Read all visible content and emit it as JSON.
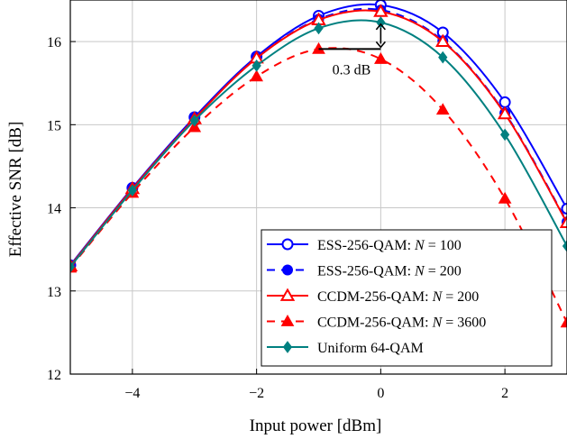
{
  "chart_data": {
    "type": "line",
    "xlabel": "Input power [dBm]",
    "ylabel": "Effective SNR [dB]",
    "xlim": [
      -5,
      3
    ],
    "ylim": [
      12,
      16.5
    ],
    "xticks": [
      -4,
      -2,
      0,
      2
    ],
    "xtick_labels": [
      "−4",
      "−2",
      "0",
      "2"
    ],
    "yticks": [
      12,
      13,
      14,
      15,
      16
    ],
    "ytick_labels": [
      "12",
      "13",
      "14",
      "15",
      "16"
    ],
    "grid": true,
    "legend_position": "bottom-right",
    "x": [
      -5,
      -4,
      -3,
      -2,
      -1,
      0,
      1,
      2,
      3
    ],
    "series": [
      {
        "name": "ESS-256-QAM: N = 100",
        "legend_prefix": "ESS-256-QAM: ",
        "legend_var": "N",
        "legend_value": " = 100",
        "color": "#0000ff",
        "dash": "solid",
        "marker": "circle-open",
        "values": [
          13.31,
          14.24,
          15.09,
          15.82,
          16.31,
          16.44,
          16.11,
          15.27,
          13.99
        ]
      },
      {
        "name": "ESS-256-QAM: N = 200",
        "legend_prefix": "ESS-256-QAM: ",
        "legend_var": "N",
        "legend_value": " = 200",
        "color": "#0000ff",
        "dash": "dashed",
        "marker": "circle-filled",
        "values": [
          13.3,
          14.23,
          15.08,
          15.8,
          16.27,
          16.38,
          16.01,
          15.14,
          13.83
        ]
      },
      {
        "name": "CCDM-256-QAM: N = 200",
        "legend_prefix": "CCDM-256-QAM: ",
        "legend_var": "N",
        "legend_value": " = 200",
        "color": "#ff0000",
        "dash": "solid",
        "marker": "triangle-open",
        "values": [
          13.3,
          14.23,
          15.07,
          15.8,
          16.26,
          16.36,
          16.0,
          15.13,
          13.82
        ]
      },
      {
        "name": "CCDM-256-QAM: N = 3600",
        "legend_prefix": "CCDM-256-QAM: ",
        "legend_var": "N",
        "legend_value": " = 3600",
        "color": "#ff0000",
        "dash": "dashed",
        "marker": "triangle-filled",
        "values": [
          13.28,
          14.18,
          14.97,
          15.58,
          15.91,
          15.79,
          15.18,
          14.11,
          12.62
        ]
      },
      {
        "name": "Uniform 64-QAM",
        "legend_prefix": "Uniform 64-QAM",
        "legend_var": "",
        "legend_value": "",
        "color": "#008080",
        "dash": "solid",
        "marker": "diamond-filled",
        "values": [
          13.29,
          14.21,
          15.05,
          15.71,
          16.16,
          16.23,
          15.81,
          14.88,
          13.54
        ]
      }
    ],
    "annotation": {
      "text": "0.3 dB",
      "x": 0,
      "y_top": 16.23,
      "y_bottom": 15.91,
      "x_start": -1
    }
  }
}
